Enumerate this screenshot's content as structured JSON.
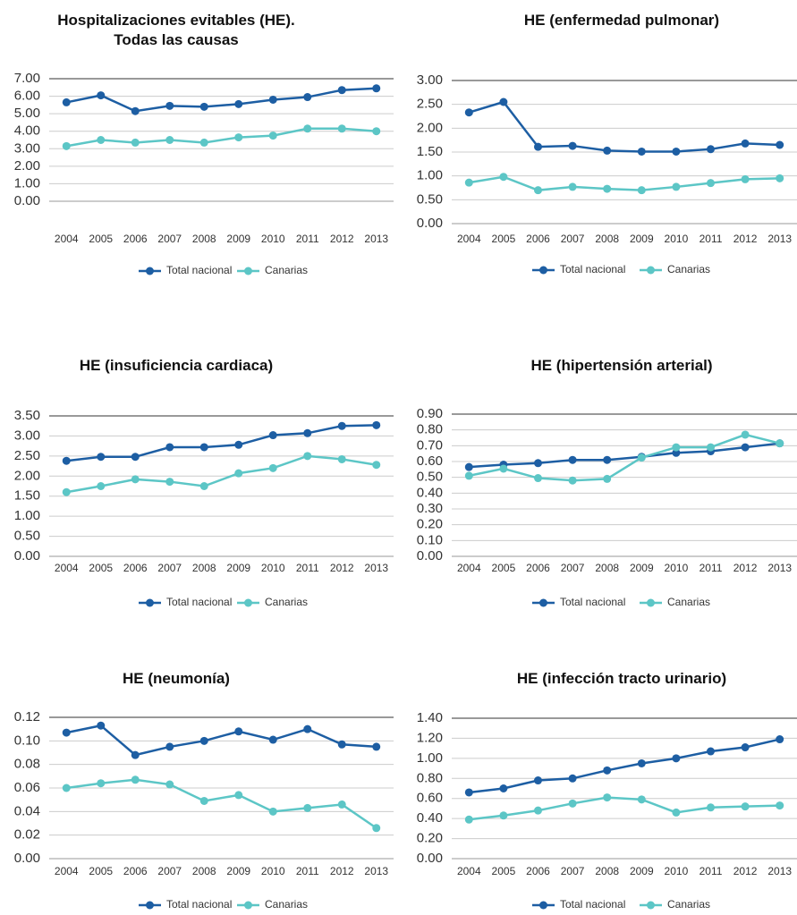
{
  "chart_data": [
    {
      "type": "line",
      "title": "Hospitalizaciones evitables (HE).\nTodas las causas",
      "categories": [
        "2004",
        "2005",
        "2006",
        "2007",
        "2008",
        "2009",
        "2010",
        "2011",
        "2012",
        "2013"
      ],
      "series": [
        {
          "name": "Total nacional",
          "color": "#1d5ea3",
          "values": [
            5.65,
            6.05,
            5.15,
            5.45,
            5.4,
            5.55,
            5.8,
            5.95,
            6.35,
            6.45
          ]
        },
        {
          "name": "Canarias",
          "color": "#5cc6c6",
          "values": [
            3.15,
            3.5,
            3.35,
            3.5,
            3.35,
            3.65,
            3.75,
            4.15,
            4.15,
            4.0
          ]
        }
      ],
      "ylim": [
        0,
        7
      ],
      "yticks": [
        {
          "value": 0,
          "label": "0.00"
        },
        {
          "value": 1,
          "label": "1.00"
        },
        {
          "value": 2,
          "label": "2.00"
        },
        {
          "value": 3,
          "label": "3.00"
        },
        {
          "value": 4,
          "label": "4.00"
        },
        {
          "value": 5,
          "label": "5.00"
        },
        {
          "value": 6,
          "label": "6.00"
        },
        {
          "value": 7,
          "label": "7.00"
        }
      ],
      "grid": true,
      "legend": "bottom"
    },
    {
      "type": "line",
      "title": "HE (enfermedad pulmonar)",
      "categories": [
        "2004",
        "2005",
        "2006",
        "2007",
        "2008",
        "2009",
        "2010",
        "2011",
        "2012",
        "2013"
      ],
      "series": [
        {
          "name": "Total nacional",
          "color": "#1d5ea3",
          "values": [
            2.33,
            2.55,
            1.61,
            1.63,
            1.53,
            1.51,
            1.51,
            1.56,
            1.68,
            1.65
          ]
        },
        {
          "name": "Canarias",
          "color": "#5cc6c6",
          "values": [
            0.86,
            0.98,
            0.7,
            0.77,
            0.73,
            0.7,
            0.77,
            0.85,
            0.93,
            0.95
          ]
        }
      ],
      "ylim": [
        0,
        3
      ],
      "yticks": [
        {
          "value": 0,
          "label": "0.00"
        },
        {
          "value": 0.5,
          "label": "0.50"
        },
        {
          "value": 1,
          "label": "1.00"
        },
        {
          "value": 1.5,
          "label": "1.50"
        },
        {
          "value": 2,
          "label": "2.00"
        },
        {
          "value": 2.5,
          "label": "2.50"
        },
        {
          "value": 3,
          "label": "3.00"
        }
      ],
      "grid": true,
      "legend": "bottom"
    },
    {
      "type": "line",
      "title": "HE (insuficiencia cardiaca)",
      "categories": [
        "2004",
        "2005",
        "2006",
        "2007",
        "2008",
        "2009",
        "2010",
        "2011",
        "2012",
        "2013"
      ],
      "series": [
        {
          "name": "Total nacional",
          "color": "#1d5ea3",
          "values": [
            2.38,
            2.48,
            2.48,
            2.72,
            2.72,
            2.78,
            3.02,
            3.07,
            3.25,
            3.27
          ]
        },
        {
          "name": "Canarias",
          "color": "#5cc6c6",
          "values": [
            1.6,
            1.75,
            1.92,
            1.86,
            1.75,
            2.07,
            2.2,
            2.5,
            2.42,
            2.28
          ]
        }
      ],
      "ylim": [
        0,
        3.5
      ],
      "yticks": [
        {
          "value": 0,
          "label": "0.00"
        },
        {
          "value": 0.5,
          "label": "0.50"
        },
        {
          "value": 1,
          "label": "1.00"
        },
        {
          "value": 1.5,
          "label": "1.50"
        },
        {
          "value": 2,
          "label": "2.00"
        },
        {
          "value": 2.5,
          "label": "2.50"
        },
        {
          "value": 3,
          "label": "3.00"
        },
        {
          "value": 3.5,
          "label": "3.50"
        }
      ],
      "grid": true,
      "legend": "bottom"
    },
    {
      "type": "line",
      "title": "HE (hipertensión arterial)",
      "categories": [
        "2004",
        "2005",
        "2006",
        "2007",
        "2008",
        "2009",
        "2010",
        "2011",
        "2012",
        "2013"
      ],
      "series": [
        {
          "name": "Total nacional",
          "color": "#1d5ea3",
          "values": [
            0.565,
            0.58,
            0.59,
            0.61,
            0.61,
            0.63,
            0.655,
            0.665,
            0.69,
            0.715
          ]
        },
        {
          "name": "Canarias",
          "color": "#5cc6c6",
          "values": [
            0.51,
            0.555,
            0.495,
            0.48,
            0.49,
            0.625,
            0.69,
            0.69,
            0.77,
            0.715
          ]
        }
      ],
      "ylim": [
        0,
        0.9
      ],
      "yticks": [
        {
          "value": 0,
          "label": "0.00"
        },
        {
          "value": 0.1,
          "label": "0.10"
        },
        {
          "value": 0.2,
          "label": "0.20"
        },
        {
          "value": 0.3,
          "label": "0.30"
        },
        {
          "value": 0.4,
          "label": "0.40"
        },
        {
          "value": 0.5,
          "label": "0.50"
        },
        {
          "value": 0.6,
          "label": "0.60"
        },
        {
          "value": 0.7,
          "label": "0.70"
        },
        {
          "value": 0.8,
          "label": "0.80"
        },
        {
          "value": 0.9,
          "label": "0.90"
        }
      ],
      "grid": true,
      "legend": "bottom"
    },
    {
      "type": "line",
      "title": "HE (neumonía)",
      "categories": [
        "2004",
        "2005",
        "2006",
        "2007",
        "2008",
        "2009",
        "2010",
        "2011",
        "2012",
        "2013"
      ],
      "series": [
        {
          "name": "Total nacional",
          "color": "#1d5ea3",
          "values": [
            0.107,
            0.113,
            0.088,
            0.095,
            0.1,
            0.108,
            0.101,
            0.11,
            0.097,
            0.095
          ]
        },
        {
          "name": "Canarias",
          "color": "#5cc6c6",
          "values": [
            0.06,
            0.064,
            0.067,
            0.063,
            0.049,
            0.054,
            0.04,
            0.043,
            0.046,
            0.026
          ]
        }
      ],
      "ylim": [
        0,
        0.12
      ],
      "yticks": [
        {
          "value": 0,
          "label": "0.00"
        },
        {
          "value": 0.02,
          "label": "0.02"
        },
        {
          "value": 0.04,
          "label": "0.04"
        },
        {
          "value": 0.06,
          "label": "0.06"
        },
        {
          "value": 0.08,
          "label": "0.08"
        },
        {
          "value": 0.1,
          "label": "0.10"
        },
        {
          "value": 0.12,
          "label": "0.12"
        }
      ],
      "grid": true,
      "legend": "bottom"
    },
    {
      "type": "line",
      "title": "HE (infección tracto urinario)",
      "categories": [
        "2004",
        "2005",
        "2006",
        "2007",
        "2008",
        "2009",
        "2010",
        "2011",
        "2012",
        "2013"
      ],
      "series": [
        {
          "name": "Total nacional",
          "color": "#1d5ea3",
          "values": [
            0.66,
            0.7,
            0.78,
            0.8,
            0.88,
            0.95,
            1.0,
            1.07,
            1.11,
            1.19
          ]
        },
        {
          "name": "Canarias",
          "color": "#5cc6c6",
          "values": [
            0.39,
            0.43,
            0.48,
            0.55,
            0.61,
            0.59,
            0.46,
            0.51,
            0.52,
            0.53
          ]
        }
      ],
      "ylim": [
        0,
        1.4
      ],
      "yticks": [
        {
          "value": 0,
          "label": "0.00"
        },
        {
          "value": 0.2,
          "label": "0.20"
        },
        {
          "value": 0.4,
          "label": "0.40"
        },
        {
          "value": 0.6,
          "label": "0.60"
        },
        {
          "value": 0.8,
          "label": "0.80"
        },
        {
          "value": 1,
          "label": "1.00"
        },
        {
          "value": 1.2,
          "label": "1.20"
        },
        {
          "value": 1.4,
          "label": "1.40"
        }
      ],
      "grid": true,
      "legend": "bottom"
    }
  ]
}
